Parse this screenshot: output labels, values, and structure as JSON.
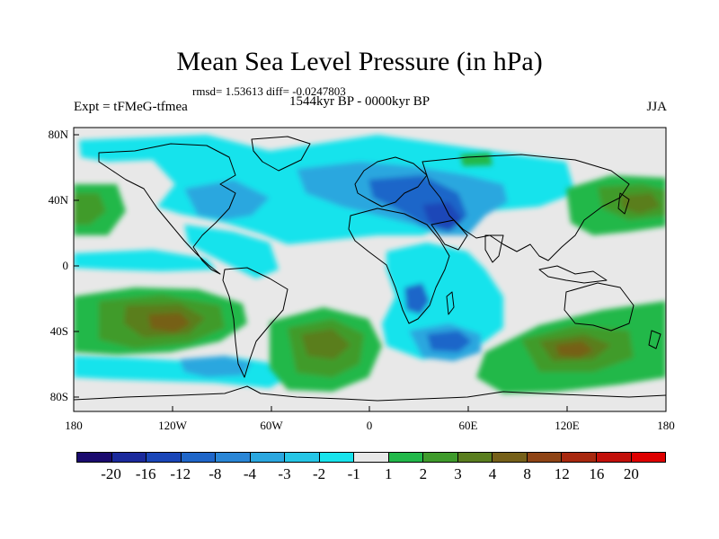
{
  "title": "Mean Sea Level Pressure (in hPa)",
  "stats_text": "rmsd= 1.53613 diff= -0.0247803",
  "experiment": "Expt = tFMeG-tfmea",
  "period": "1544kyr BP - 0000kyr BP",
  "season": "JJA",
  "lat_labels": [
    "80N",
    "40N",
    "0",
    "40S",
    "80S"
  ],
  "lon_labels": [
    "180",
    "120W",
    "60W",
    "0",
    "60E",
    "120E",
    "180"
  ],
  "colorbar": {
    "colors": [
      "#1a0a6e",
      "#1b2a9c",
      "#1a46b8",
      "#1f66c9",
      "#2a86d6",
      "#2ba7df",
      "#26c6e6",
      "#18e3ec",
      "#e8e8e8",
      "#22b84a",
      "#3f9b2c",
      "#5a7e1f",
      "#766019",
      "#8f4415",
      "#a8280f",
      "#c2100a",
      "#de0000"
    ],
    "labels": [
      "-20",
      "-16",
      "-12",
      "-8",
      "-4",
      "-3",
      "-2",
      "-1",
      "1",
      "2",
      "3",
      "4",
      "8",
      "12",
      "16",
      "20"
    ]
  },
  "map_palette": {
    "background": "#e8e8e8",
    "neg1": "#18e3ec",
    "neg2": "#2ba7df",
    "neg3": "#1f66c9",
    "neg4": "#1a46b8",
    "pos1": "#22b84a",
    "pos2": "#3f9b2c",
    "pos3": "#5a7e1f",
    "pos4": "#766019"
  }
}
